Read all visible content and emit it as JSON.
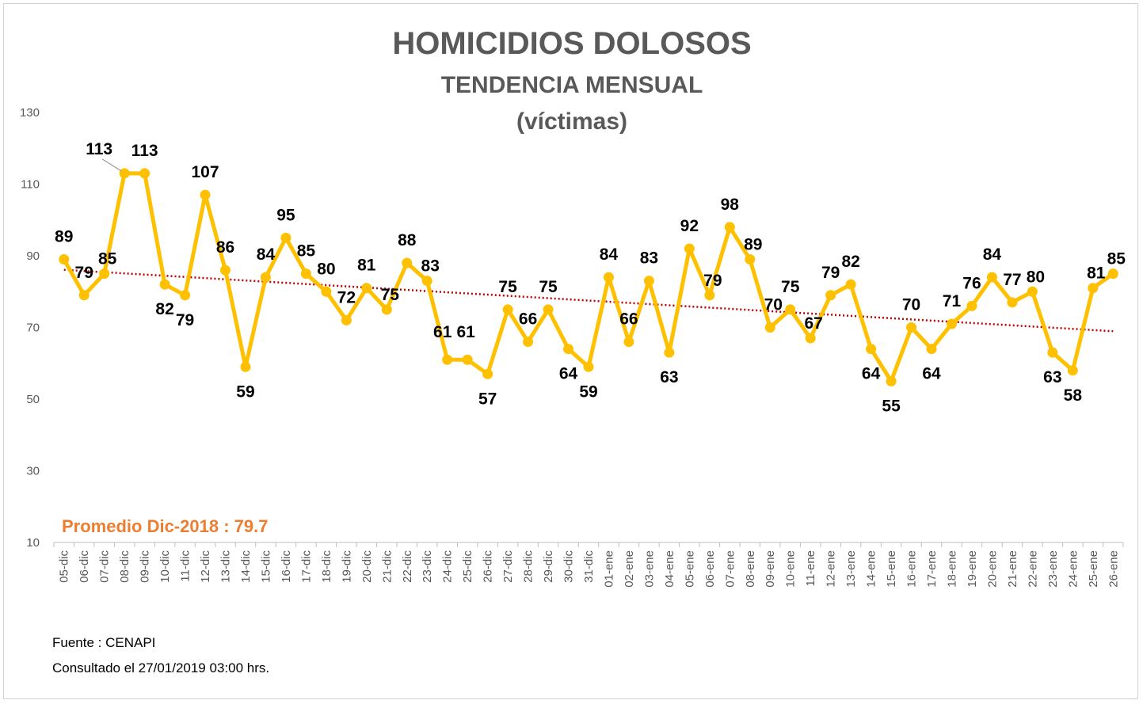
{
  "chart_data": {
    "type": "line",
    "title": "HOMICIDIOS DOLOSOS",
    "subtitle": "TENDENCIA MENSUAL",
    "subtitle2": "(víctimas)",
    "categories": [
      "05-dic",
      "06-dic",
      "07-dic",
      "08-dic",
      "09-dic",
      "10-dic",
      "11-dic",
      "12-dic",
      "13-dic",
      "14-dic",
      "15-dic",
      "16-dic",
      "17-dic",
      "18-dic",
      "19-dic",
      "20-dic",
      "21-dic",
      "22-dic",
      "23-dic",
      "24-dic",
      "25-dic",
      "26-dic",
      "27-dic",
      "28-dic",
      "29-dic",
      "30-dic",
      "31-dic",
      "01-ene",
      "02-ene",
      "03-ene",
      "04-ene",
      "05-ene",
      "06-ene",
      "07-ene",
      "08-ene",
      "09-ene",
      "10-ene",
      "11-ene",
      "12-ene",
      "13-ene",
      "14-ene",
      "15-ene",
      "16-ene",
      "17-ene",
      "18-ene",
      "19-ene",
      "20-ene",
      "21-ene",
      "22-ene",
      "23-ene",
      "24-ene",
      "25-ene",
      "26-ene"
    ],
    "values": [
      89,
      79,
      85,
      113,
      113,
      82,
      79,
      107,
      86,
      59,
      84,
      95,
      85,
      80,
      72,
      81,
      75,
      88,
      83,
      61,
      61,
      57,
      75,
      66,
      75,
      64,
      59,
      84,
      66,
      83,
      63,
      92,
      79,
      98,
      89,
      70,
      75,
      67,
      79,
      82,
      64,
      55,
      70,
      64,
      71,
      76,
      84,
      77,
      80,
      63,
      58,
      81,
      85
    ],
    "yticks": [
      10,
      30,
      50,
      70,
      90,
      110,
      130
    ],
    "ylim": [
      10,
      130
    ],
    "trendline": {
      "type": "linear",
      "color": "#C00000"
    },
    "line_color": "#FFC000",
    "annotation": "Promedio Dic-2018 : 79.7",
    "annotation_color": "#ED7D31",
    "grid": false,
    "legend": "none"
  },
  "footer": {
    "source": "Fuente : CENAPI",
    "consulted": "Consultado el 27/01/2019  03:00 hrs."
  }
}
